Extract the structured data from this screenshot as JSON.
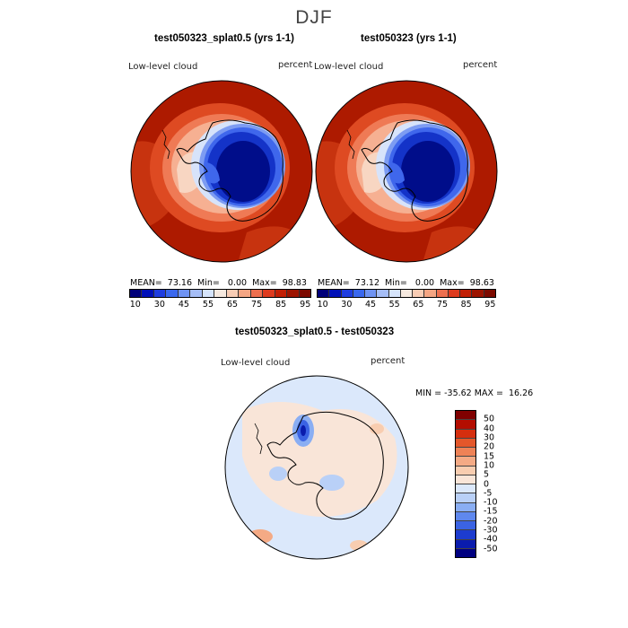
{
  "season": "DJF",
  "panel_left": {
    "title": "test050323_splat0.5 (yrs 1-1)",
    "variable": "Low-level cloud",
    "units": "percent",
    "stats": "MEAN=  73.16  Min=   0.00  Max=  98.83"
  },
  "panel_right": {
    "title": "test050323 (yrs 1-1)",
    "variable": "Low-level cloud",
    "units": "percent",
    "stats": "MEAN=  73.12  Min=   0.00  Max=  98.63"
  },
  "panel_diff": {
    "title": "test050323_splat0.5 - test050323",
    "variable": "Low-level cloud",
    "units": "percent",
    "stats": "MIN = -35.62 MAX =  16.26"
  },
  "colorbar_top": {
    "colors": [
      "#00007a",
      "#0010b8",
      "#1f3de0",
      "#3a68ee",
      "#6f93f2",
      "#a5bdf6",
      "#d6e4fb",
      "#f6e9df",
      "#f8ccb4",
      "#f4a583",
      "#ed6f4f",
      "#de3b1f",
      "#c21f05",
      "#9d1400",
      "#7d0a00"
    ],
    "labels": [
      "10",
      "30",
      "45",
      "55",
      "65",
      "75",
      "85",
      "95"
    ]
  },
  "colorbar_diff": {
    "colors": [
      "#800000",
      "#b30d00",
      "#d52e0e",
      "#e4572a",
      "#ee8256",
      "#f4aa85",
      "#f8cdb0",
      "#f9e5d8",
      "#dbe8fb",
      "#b9d0f7",
      "#8aaef3",
      "#5f88ee",
      "#3b63e3",
      "#1d3ccf",
      "#0a1cad",
      "#000080"
    ],
    "labels": [
      "50",
      "40",
      "30",
      "20",
      "15",
      "10",
      "5",
      "0",
      "-5",
      "-10",
      "-15",
      "-20",
      "-30",
      "-40",
      "-50"
    ]
  }
}
